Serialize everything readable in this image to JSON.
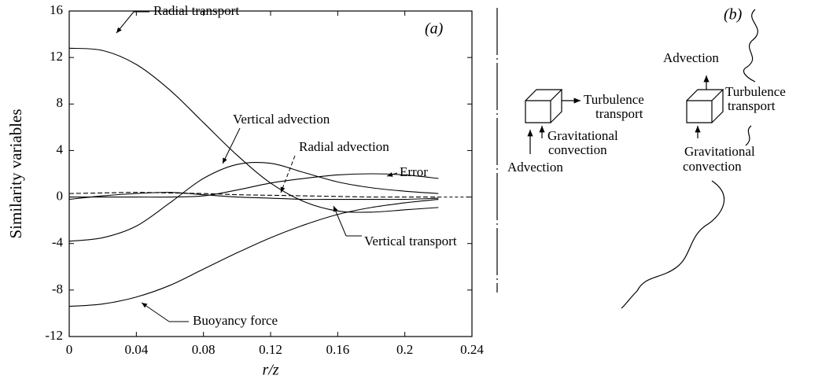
{
  "chart_data": {
    "type": "line",
    "panel_label": "(a)",
    "x_label": "r/z",
    "y_label": "Similarity variables",
    "x": [
      0,
      0.02,
      0.04,
      0.06,
      0.08,
      0.1,
      0.12,
      0.14,
      0.16,
      0.18,
      0.2,
      0.22
    ],
    "series": [
      {
        "name": "Radial transport",
        "color": "#000",
        "values": [
          12.8,
          12.6,
          11.4,
          9.2,
          6.4,
          3.6,
          1.2,
          -0.4,
          -1.2,
          -1.3,
          -1.1,
          -0.9
        ]
      },
      {
        "name": "Vertical advection",
        "color": "#000",
        "values": [
          -3.8,
          -3.5,
          -2.5,
          -0.5,
          1.6,
          2.8,
          2.9,
          2.1,
          1.3,
          0.8,
          0.5,
          0.3
        ]
      },
      {
        "name": "Radial advection",
        "color": "#000",
        "dashed": true,
        "values": [
          0.3,
          0.35,
          0.4,
          0.35,
          0.3,
          0.2,
          0.15,
          0.1,
          0.05,
          0,
          0,
          0
        ]
      },
      {
        "name": "Error",
        "color": "#000",
        "values": [
          0,
          0,
          0,
          0,
          0.1,
          0.6,
          1.2,
          1.6,
          1.9,
          2.0,
          1.9,
          1.6
        ]
      },
      {
        "name": "Vertical transport",
        "color": "#000",
        "values": [
          -0.2,
          0.1,
          0.3,
          0.4,
          0.2,
          0,
          -0.1,
          -0.2,
          -0.2,
          -0.2,
          -0.2,
          -0.1
        ]
      },
      {
        "name": "Buoyancy force",
        "color": "#000",
        "values": [
          -9.4,
          -9.2,
          -8.6,
          -7.6,
          -6.2,
          -4.8,
          -3.5,
          -2.4,
          -1.5,
          -0.9,
          -0.5,
          -0.2
        ]
      }
    ],
    "xlim": [
      0,
      0.24
    ],
    "xticks": [
      0,
      0.04,
      0.08,
      0.12,
      0.16,
      0.2,
      0.24
    ],
    "ylim": [
      -12,
      16
    ],
    "yticks": [
      -12,
      -8,
      -4,
      0,
      4,
      8,
      12,
      16
    ]
  },
  "diagram": {
    "panel_label": "(b)",
    "left": {
      "right_label": [
        "Turbulence",
        "transport"
      ],
      "below_label": [
        "Gravitational",
        "convection"
      ],
      "bottom_label": "Advection"
    },
    "right": {
      "top_label": "Advection",
      "right_label": [
        "Turbulence",
        "transport"
      ],
      "below_label": [
        "Gravitational",
        "convection"
      ]
    }
  }
}
